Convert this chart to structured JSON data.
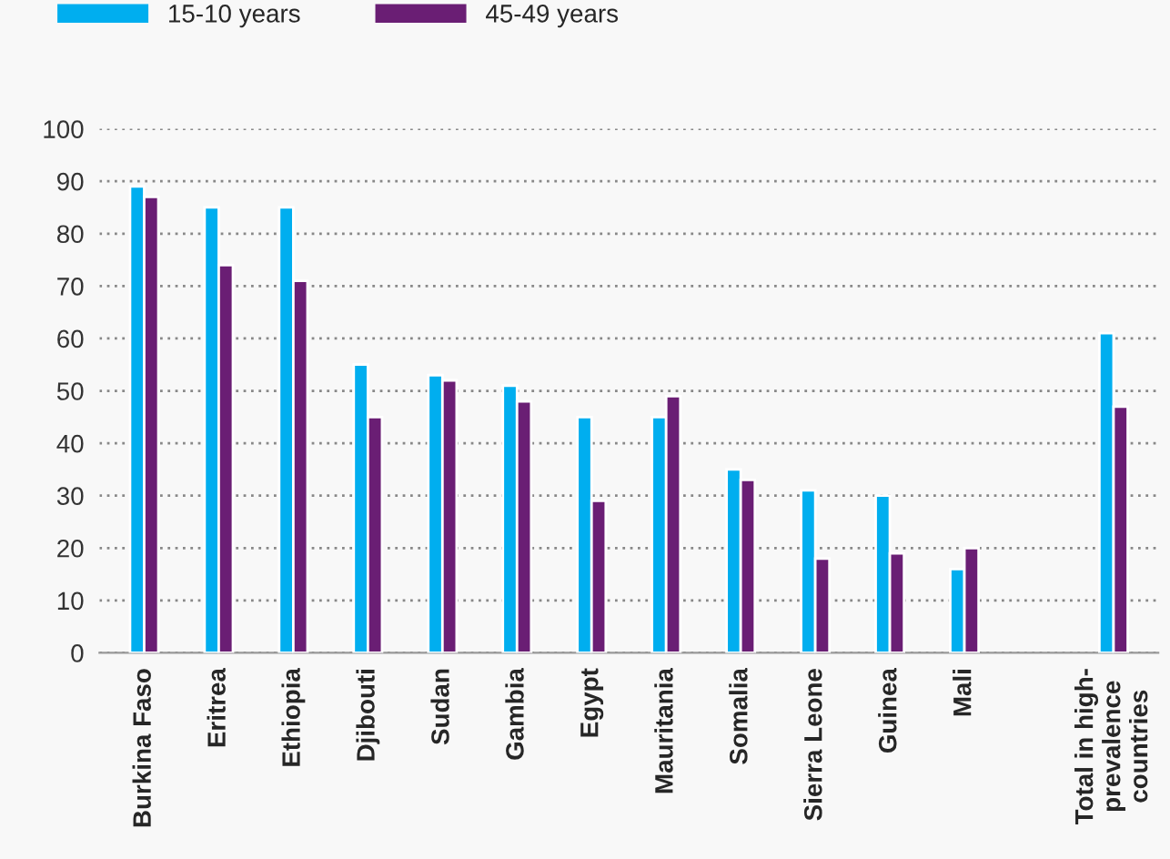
{
  "chart_data": {
    "type": "bar",
    "categories": [
      "Burkina Faso",
      "Eritrea",
      "Ethiopia",
      "Djibouti",
      "Sudan",
      "Gambia",
      "Egypt",
      "Mauritania",
      "Somalia",
      "Sierra Leone",
      "Guinea",
      "Mali",
      null,
      "Total in high-\nprevalence\ncountries"
    ],
    "series": [
      {
        "name": "15-10 years",
        "color": "#00aeef",
        "values": [
          89,
          85,
          85,
          55,
          53,
          51,
          45,
          45,
          35,
          31,
          30,
          16,
          null,
          61
        ]
      },
      {
        "name": "45-49 years",
        "color": "#6a1e74",
        "values": [
          87,
          74,
          71,
          45,
          52,
          48,
          29,
          49,
          33,
          18,
          19,
          20,
          null,
          47
        ]
      }
    ],
    "ylim": [
      0,
      100
    ],
    "yticks": [
      0,
      10,
      20,
      30,
      40,
      50,
      60,
      70,
      80,
      90,
      100
    ],
    "grid": "y",
    "legend": "top left"
  }
}
